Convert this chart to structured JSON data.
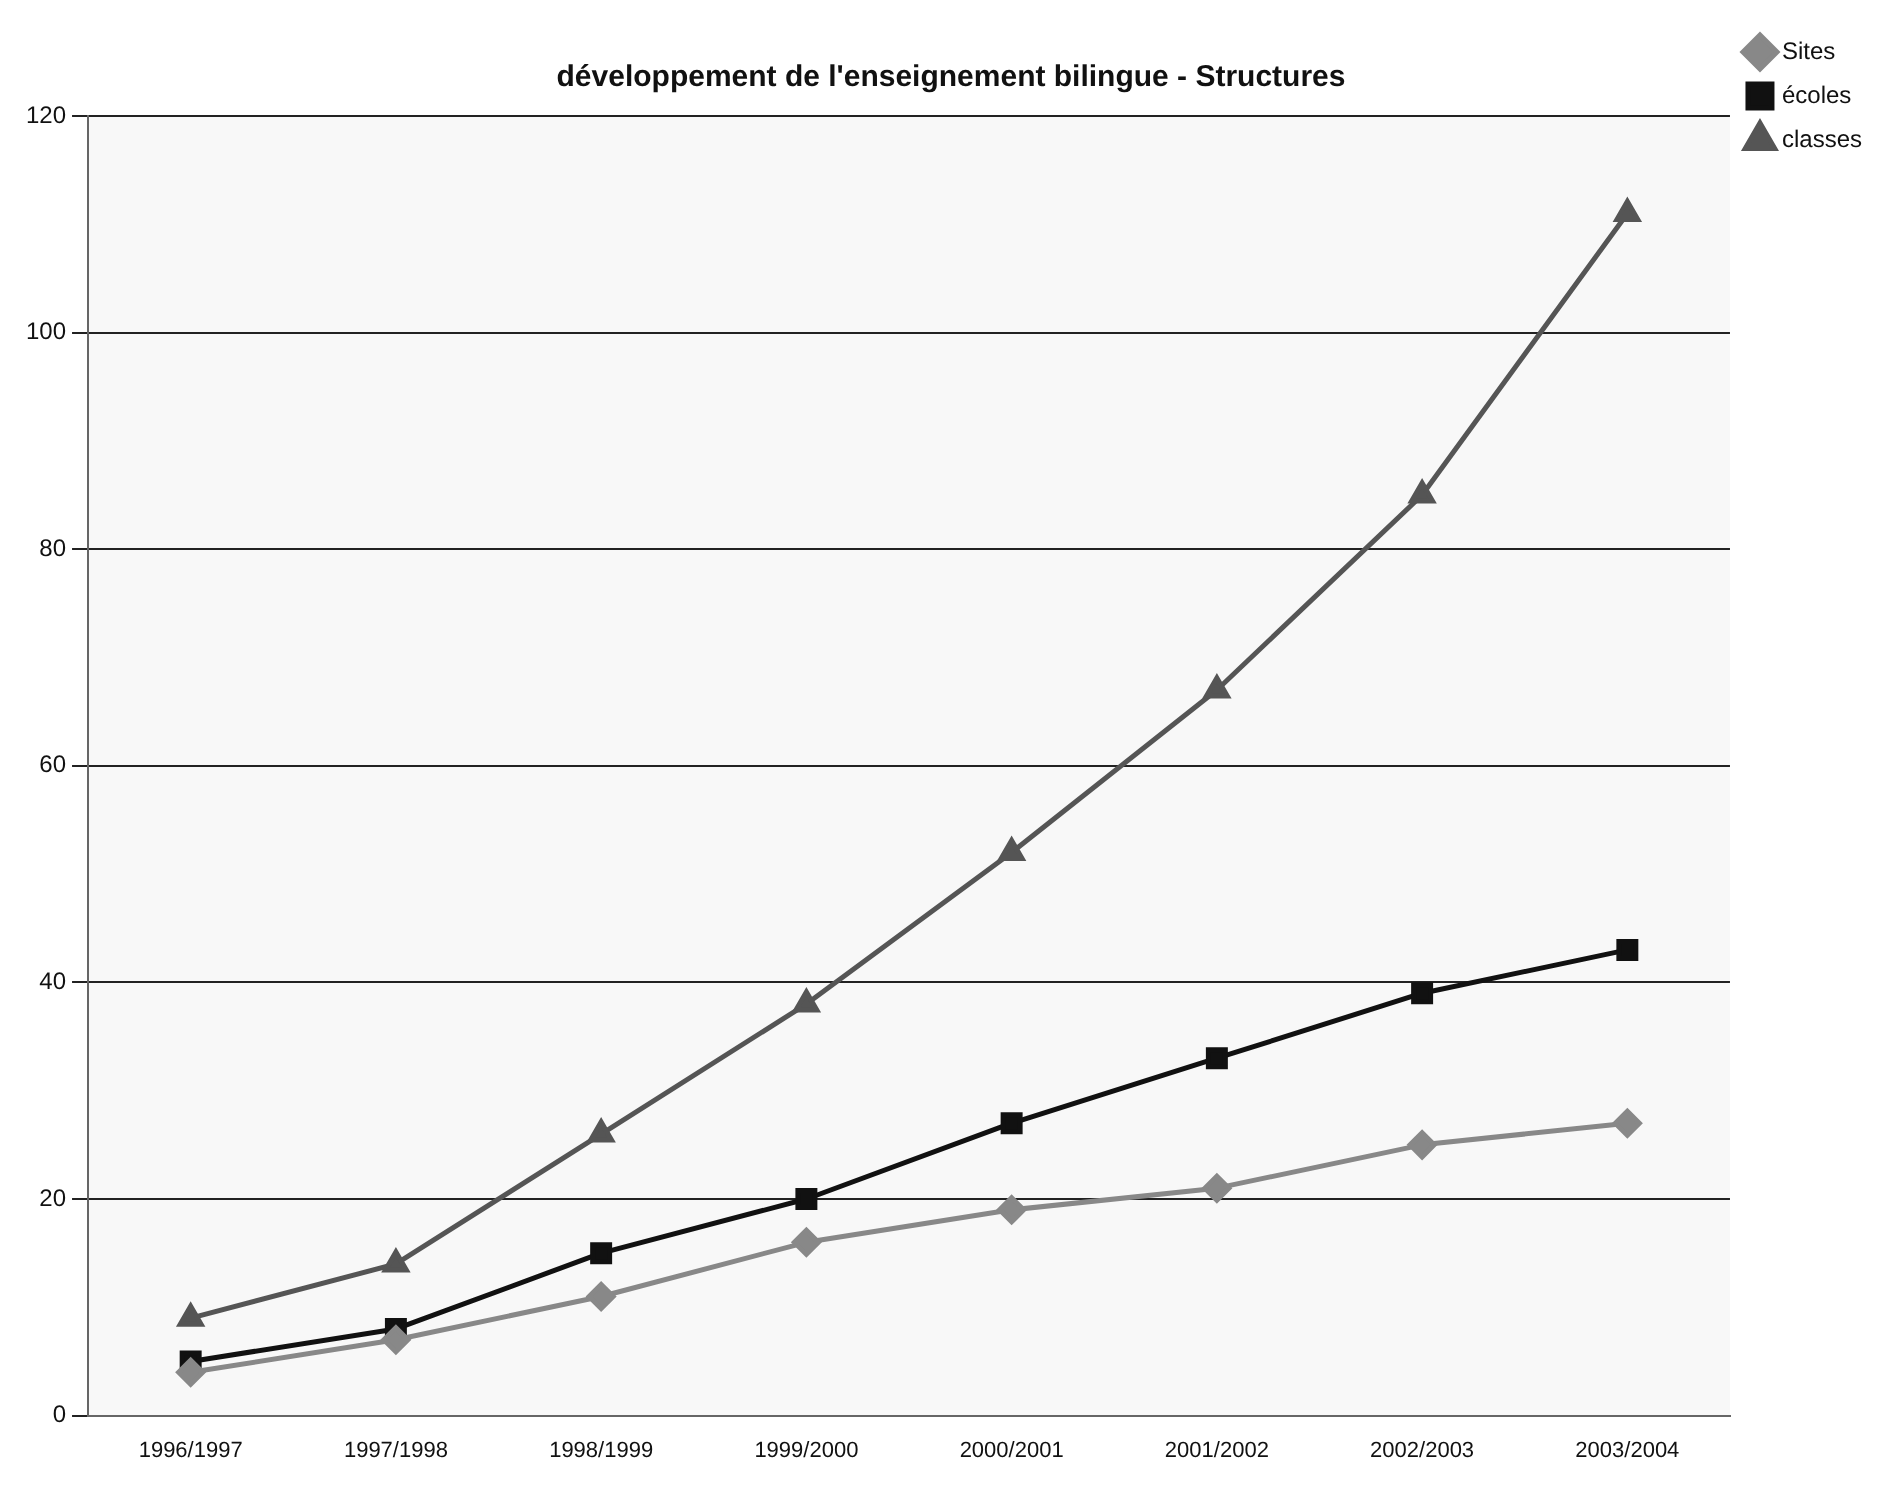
{
  "chart_data": {
    "type": "line",
    "title": "développement de l'enseignement bilingue - Structures",
    "categories": [
      "1996/1997",
      "1997/1998",
      "1998/1999",
      "1999/2000",
      "2000/2001",
      "2001/2002",
      "2002/2003",
      "2003/2004"
    ],
    "series": [
      {
        "name": "Sites",
        "color": "#888888",
        "marker": "diamond",
        "values": [
          4,
          7,
          11,
          16,
          19,
          21,
          25,
          27
        ]
      },
      {
        "name": "écoles",
        "color": "#111111",
        "marker": "square",
        "values": [
          5,
          8,
          15,
          20,
          27,
          33,
          39,
          43
        ]
      },
      {
        "name": "classes",
        "color": "#555555",
        "marker": "triangle",
        "values": [
          9,
          14,
          26,
          38,
          52,
          67,
          85,
          111
        ]
      }
    ],
    "ylim": [
      0,
      120
    ],
    "yticks": [
      0,
      20,
      40,
      60,
      80,
      100,
      120
    ],
    "grid": "y",
    "legend": "top right"
  }
}
